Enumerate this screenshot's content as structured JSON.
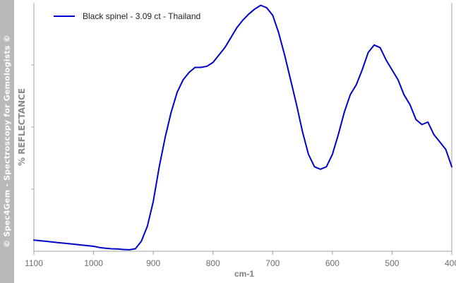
{
  "watermark": "© Spec4Gem - Spectroscopy for Gemologists ©",
  "colors": {
    "series": "#0000cc",
    "axis": "#a0a0a0",
    "side_band": "#b9b9b9"
  },
  "chart_data": {
    "type": "line",
    "title": "",
    "xlabel": "cm-1",
    "ylabel": "% REFLECTANCE",
    "xlim": [
      1100,
      400
    ],
    "x_reversed": true,
    "ylim": [
      0,
      1
    ],
    "grid": false,
    "legend_position": "top-left",
    "x_ticks": [
      1100,
      1000,
      900,
      800,
      700,
      600,
      500,
      400
    ],
    "x_tick_labels": [
      "1100",
      "1000",
      "900",
      "800",
      "700",
      "600",
      "500",
      "400"
    ],
    "series": [
      {
        "name": "Black spinel - 3.09 ct - Thailand",
        "x": [
          1100,
          1080,
          1060,
          1040,
          1020,
          1000,
          990,
          980,
          970,
          960,
          950,
          940,
          930,
          920,
          910,
          900,
          890,
          880,
          870,
          860,
          850,
          840,
          830,
          820,
          810,
          800,
          790,
          780,
          770,
          760,
          750,
          740,
          730,
          720,
          710,
          700,
          690,
          680,
          670,
          660,
          650,
          640,
          630,
          620,
          610,
          600,
          590,
          580,
          570,
          560,
          550,
          540,
          530,
          520,
          510,
          500,
          490,
          480,
          470,
          460,
          450,
          440,
          430,
          420,
          410,
          400
        ],
        "y": [
          0.045,
          0.04,
          0.035,
          0.03,
          0.025,
          0.02,
          0.015,
          0.012,
          0.01,
          0.009,
          0.007,
          0.006,
          0.01,
          0.04,
          0.1,
          0.2,
          0.34,
          0.46,
          0.56,
          0.64,
          0.69,
          0.72,
          0.74,
          0.74,
          0.745,
          0.76,
          0.79,
          0.82,
          0.86,
          0.9,
          0.93,
          0.955,
          0.975,
          0.99,
          0.98,
          0.95,
          0.88,
          0.79,
          0.69,
          0.59,
          0.48,
          0.39,
          0.34,
          0.33,
          0.34,
          0.39,
          0.47,
          0.56,
          0.63,
          0.67,
          0.73,
          0.8,
          0.83,
          0.82,
          0.77,
          0.73,
          0.69,
          0.63,
          0.59,
          0.53,
          0.51,
          0.52,
          0.47,
          0.44,
          0.41,
          0.34
        ]
      }
    ]
  }
}
